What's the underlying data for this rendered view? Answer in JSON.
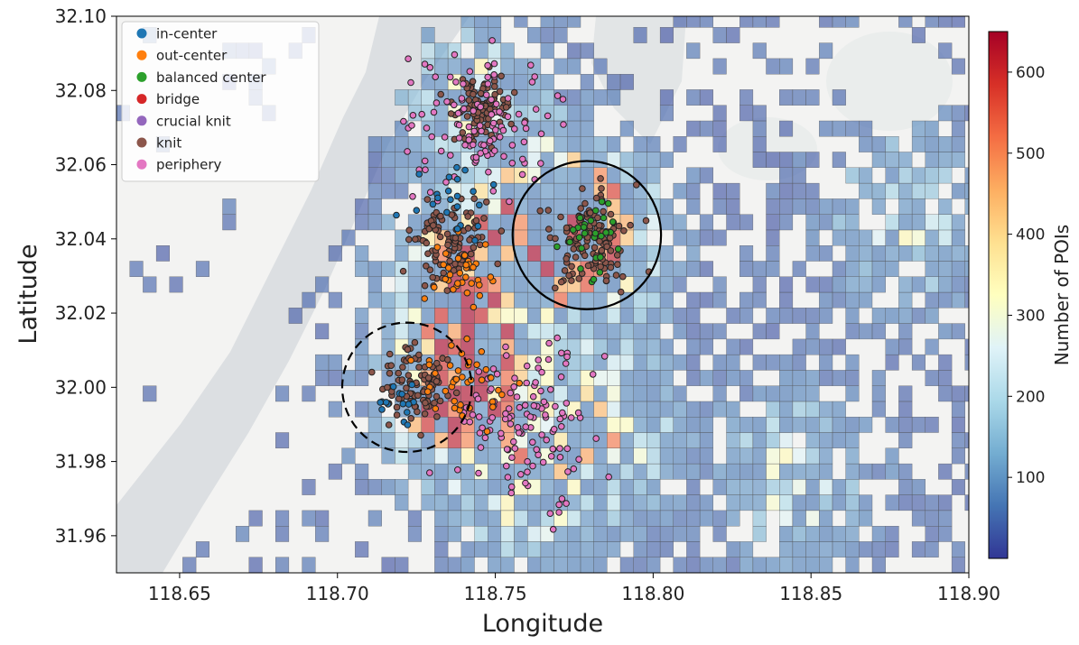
{
  "chart_data": {
    "type": "heatmap",
    "title": "",
    "xlabel": "Longitude",
    "ylabel": "Latitude",
    "xlim": [
      118.63,
      118.9
    ],
    "ylim": [
      31.95,
      32.1
    ],
    "x_ticks": [
      118.65,
      118.7,
      118.75,
      118.8,
      118.85,
      118.9
    ],
    "x_tick_labels": [
      "118.65",
      "118.70",
      "118.75",
      "118.80",
      "118.85",
      "118.90"
    ],
    "y_ticks": [
      31.96,
      31.98,
      32.0,
      32.02,
      32.04,
      32.06,
      32.08,
      32.1
    ],
    "y_tick_labels": [
      "31.96",
      "31.98",
      "32.00",
      "32.02",
      "32.04",
      "32.06",
      "32.08",
      "32.10"
    ],
    "grid": false,
    "legend_position": "top-left",
    "legend": [
      {
        "label": "in-center",
        "color": "#1f77b4"
      },
      {
        "label": "out-center",
        "color": "#ff7f0e"
      },
      {
        "label": "balanced center",
        "color": "#2ca02c"
      },
      {
        "label": "bridge",
        "color": "#d62728"
      },
      {
        "label": "crucial knit",
        "color": "#9467bd"
      },
      {
        "label": "knit",
        "color": "#8c564b"
      },
      {
        "label": "periphery",
        "color": "#e377c2"
      }
    ],
    "colorbar": {
      "label": "Number of POIs",
      "ticks": [
        100,
        200,
        300,
        400,
        500,
        600
      ],
      "tick_labels": [
        "100",
        "200",
        "300",
        "400",
        "500",
        "600"
      ],
      "range": [
        0,
        650
      ],
      "colormap": "RdYlBu_r"
    },
    "annotations": [
      {
        "type": "circle",
        "style": "solid",
        "center": [
          118.779,
          32.041
        ],
        "radius_lon": 0.0235
      },
      {
        "type": "circle",
        "style": "dashed",
        "center": [
          118.722,
          32.0
        ],
        "radius_lon": 0.0205
      }
    ],
    "hotspots": [
      {
        "lon": 118.78,
        "lat": 32.04,
        "poi_count": 600
      },
      {
        "lon": 118.765,
        "lat": 32.045,
        "poi_count": 560
      },
      {
        "lon": 118.74,
        "lat": 32.03,
        "poi_count": 470
      },
      {
        "lon": 118.745,
        "lat": 32.01,
        "poi_count": 430
      },
      {
        "lon": 118.735,
        "lat": 31.995,
        "poi_count": 420
      },
      {
        "lon": 118.76,
        "lat": 31.975,
        "poi_count": 380
      },
      {
        "lon": 118.785,
        "lat": 31.99,
        "poi_count": 360
      },
      {
        "lon": 118.74,
        "lat": 32.08,
        "poi_count": 300
      },
      {
        "lon": 118.845,
        "lat": 31.975,
        "poi_count": 260
      },
      {
        "lon": 118.88,
        "lat": 32.045,
        "poi_count": 230
      }
    ],
    "point_clusters": [
      {
        "category": "knit",
        "lon": 118.735,
        "lat": 32.04,
        "spread": 0.012
      },
      {
        "category": "knit",
        "lon": 118.725,
        "lat": 32.0,
        "spread": 0.01
      },
      {
        "category": "knit",
        "lon": 118.78,
        "lat": 32.04,
        "spread": 0.014
      },
      {
        "category": "knit",
        "lon": 118.745,
        "lat": 32.075,
        "spread": 0.01
      },
      {
        "category": "periphery",
        "lon": 118.76,
        "lat": 31.99,
        "spread": 0.022
      },
      {
        "category": "periphery",
        "lon": 118.745,
        "lat": 32.07,
        "spread": 0.02
      },
      {
        "category": "out-center",
        "lon": 118.74,
        "lat": 32.03,
        "spread": 0.01
      },
      {
        "category": "out-center",
        "lon": 118.74,
        "lat": 32.0,
        "spread": 0.012
      },
      {
        "category": "balanced center",
        "lon": 118.782,
        "lat": 32.04,
        "spread": 0.01
      },
      {
        "category": "in-center",
        "lon": 118.735,
        "lat": 32.05,
        "spread": 0.012
      },
      {
        "category": "in-center",
        "lon": 118.722,
        "lat": 31.995,
        "spread": 0.008
      }
    ]
  }
}
